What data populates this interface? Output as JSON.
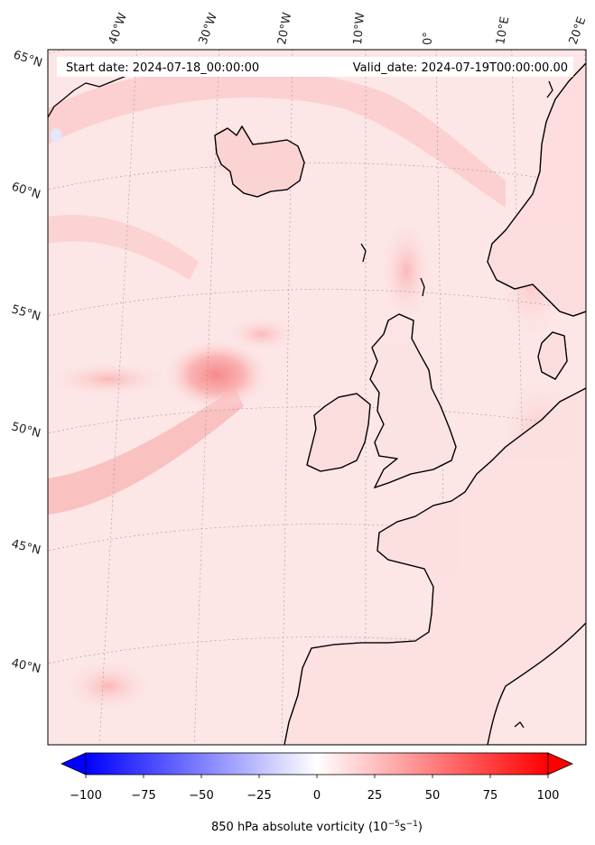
{
  "header": {
    "start_date": "Start date: 2024-07-18_00:00:00",
    "valid_date": "Valid_date: 2024-07-19T00:00:00.00"
  },
  "longitude_labels": [
    "40°W",
    "30°W",
    "20°W",
    "10°W",
    "0°",
    "10°E",
    "20°E"
  ],
  "latitude_labels": [
    "65°N",
    "60°N",
    "55°N",
    "50°N",
    "45°N",
    "40°N"
  ],
  "colorbar": {
    "ticks": [
      "−100",
      "−75",
      "−50",
      "−25",
      "0",
      "25",
      "50",
      "75",
      "100"
    ],
    "range": [
      -100,
      100
    ],
    "label_main": "850 hPa absolute vorticity (10",
    "label_exp1": "−5",
    "label_mid": "s",
    "label_exp2": "−1",
    "label_end": ")",
    "colormap": "bwr",
    "low_color": "#0000ff",
    "mid_color": "#ffffff",
    "high_color": "#ff0000"
  },
  "colors": {
    "field_base": "#fde6e6",
    "field_mid": "#fbcaca",
    "field_strong": "#f7a3a3",
    "coastline": "#000000",
    "gridline": "#9a9a9a"
  }
}
